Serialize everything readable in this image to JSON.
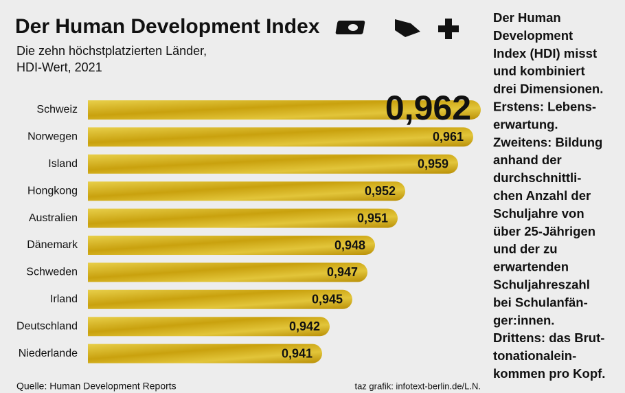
{
  "chart_data": {
    "type": "hbar",
    "title": "Der Human Development Index",
    "subtitle": [
      "Die zehn höchstplatzierten Länder,",
      "HDI-Wert, 2021"
    ],
    "categories": [
      "Schweiz",
      "Norwegen",
      "Island",
      "Hongkong",
      "Australien",
      "Dänemark",
      "Schweden",
      "Irland",
      "Deutschland",
      "Niederlande"
    ],
    "values": [
      0.962,
      0.961,
      0.959,
      0.952,
      0.951,
      0.948,
      0.947,
      0.945,
      0.942,
      0.941
    ],
    "value_labels": [
      "0,962",
      "0,961",
      "0,959",
      "0,952",
      "0,951",
      "0,948",
      "0,947",
      "0,945",
      "0,942",
      "0,941"
    ],
    "color": "#d6b41c",
    "xlim": [
      0.91,
      0.962
    ],
    "source": "Quelle: Human Development Reports",
    "credit": "taz grafik: infotext-berlin.de/L.N.",
    "description": [
      "Der Human",
      "Development",
      "Index (HDI) misst",
      "und kombiniert",
      "drei Dimensionen.",
      "Erstens: Lebens-",
      "erwartung.",
      "Zweitens: Bildung",
      "anhand der",
      "durchschnittli-",
      "chen Anzahl der",
      "Schuljahre von",
      "über 25-Jährigen",
      "und der zu",
      "erwartenden",
      "Schuljahreszahl",
      "bei Schulanfän-",
      "ger:innen.",
      "Drittens: das Brut-",
      "tonationalein-",
      "kommen pro Kopf."
    ]
  }
}
